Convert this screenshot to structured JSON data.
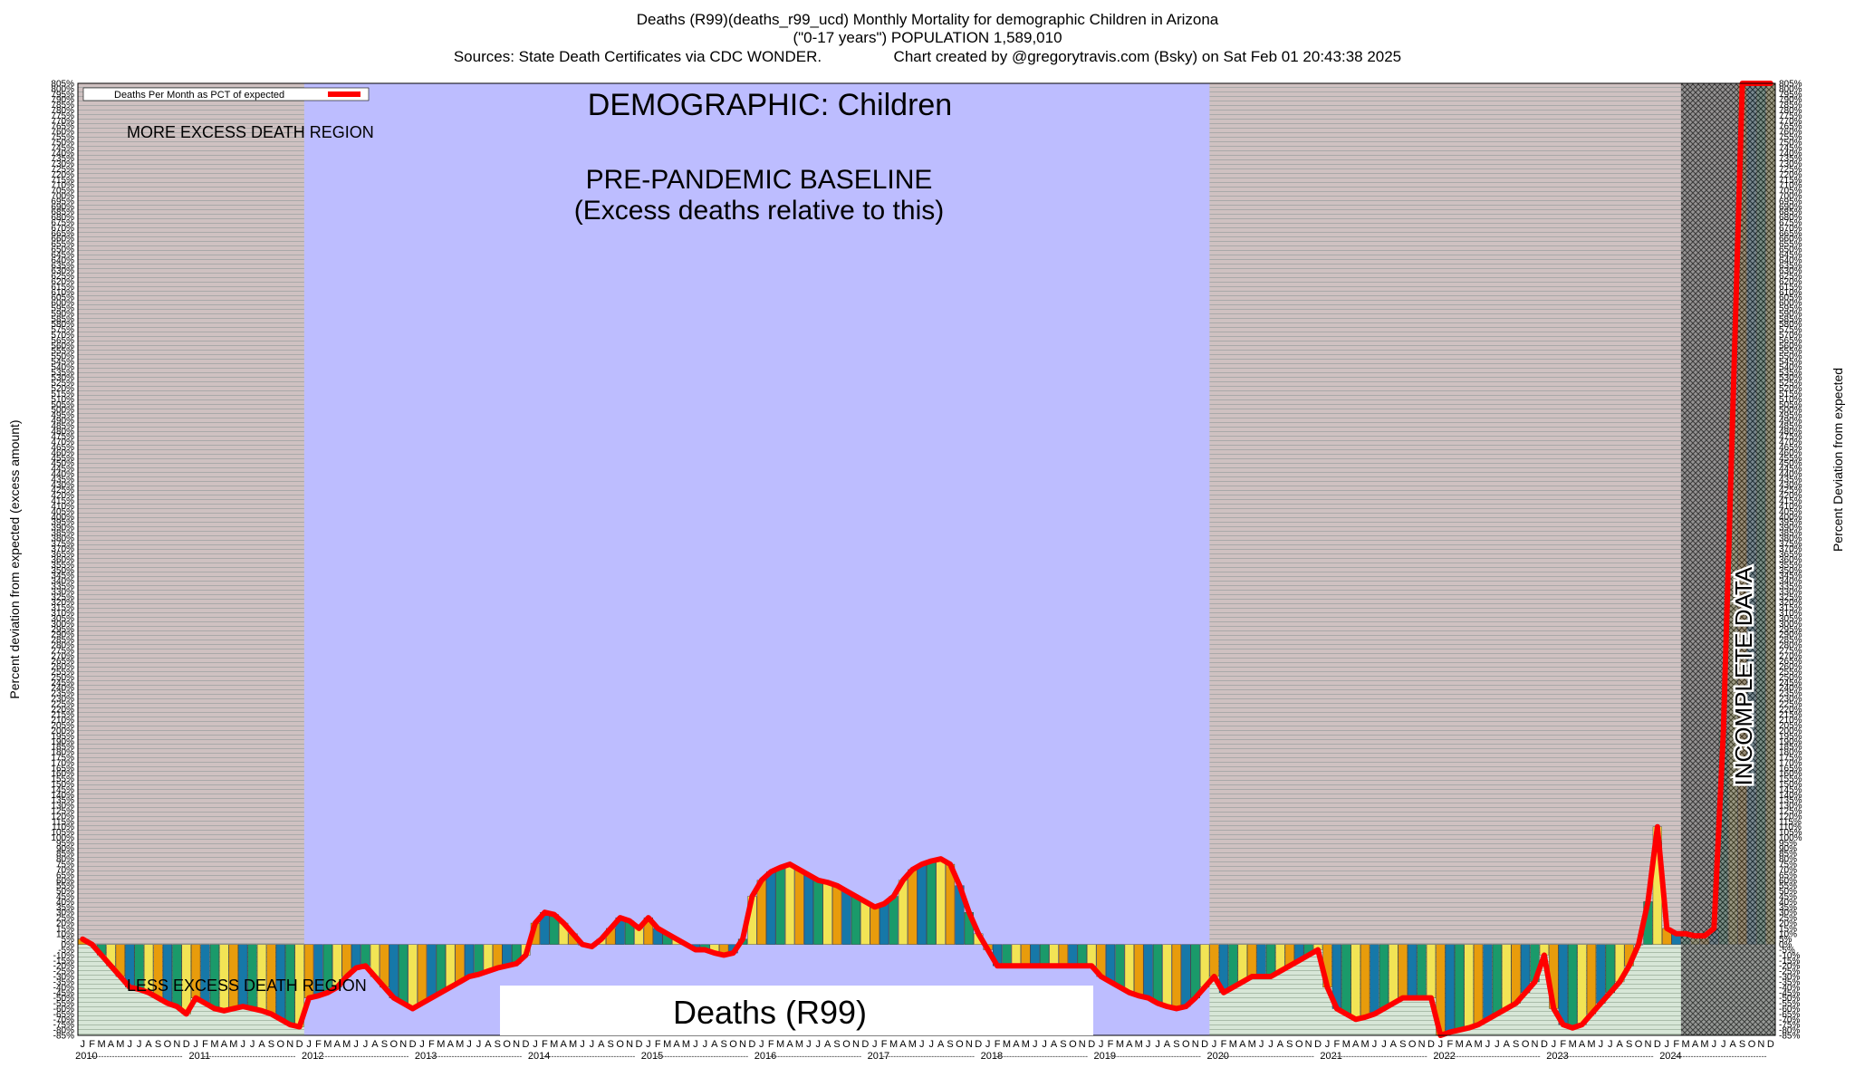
{
  "header": {
    "line1": "Deaths (R99)(deaths_r99_ucd) Monthly Mortality for demographic Children in Arizona",
    "line2": "(\"0-17 years\") POPULATION 1,589,010",
    "line3_left": "Sources: State Death Certificates via CDC WONDER.",
    "line3_right": "Chart created by @gregorytravis.com (Bsky) on Sat Feb 01 20:43:38 2025"
  },
  "chart_data": {
    "type": "bar",
    "title": "DEMOGRAPHIC: Children",
    "ylabel_left": "Percent deviation from expected (excess amount)",
    "ylabel_right": "Percent Deviation from expected",
    "ylim": [
      -85,
      805
    ],
    "ytick_step": 5,
    "legend": {
      "label": "Deaths Per Month as PCT of expected",
      "color": "#ff0000",
      "position": "top-left"
    },
    "annotations": {
      "more_excess": "MORE EXCESS DEATH REGION",
      "less_excess": "LESS EXCESS DEATH REGION",
      "baseline_1": "PRE-PANDEMIC BASELINE",
      "baseline_2": "(Excess deaths relative to this)",
      "incomplete": "INCOMPLETE DATA",
      "series_box": "Deaths (R99)"
    },
    "month_letters": [
      "J",
      "F",
      "M",
      "A",
      "M",
      "J",
      "J",
      "A",
      "S",
      "O",
      "N",
      "D"
    ],
    "years": [
      "2010",
      "2011",
      "2012",
      "2013",
      "2014",
      "2015",
      "2016",
      "2017",
      "2018",
      "2019",
      "2020",
      "2021",
      "2022",
      "2023",
      "2024"
    ],
    "baseline_years": [
      "2012",
      "2013",
      "2014",
      "2015",
      "2016",
      "2017",
      "2018",
      "2019"
    ],
    "incomplete_from": "2024-03",
    "bar_colors": [
      "#e89c0c",
      "#1678a8",
      "#1a9a6a",
      "#f2e455"
    ],
    "series": [
      {
        "name": "Deaths Per Month as PCT of expected",
        "color": "#ff0000",
        "values": [
          5,
          0,
          -10,
          -20,
          -30,
          -40,
          -42,
          -45,
          -50,
          -55,
          -58,
          -65,
          -50,
          -55,
          -60,
          -62,
          -60,
          -58,
          -60,
          -62,
          -65,
          -70,
          -75,
          -77,
          -50,
          -48,
          -45,
          -40,
          -30,
          -22,
          -20,
          -30,
          -40,
          -50,
          -55,
          -60,
          -55,
          -50,
          -45,
          -40,
          -35,
          -30,
          -28,
          -25,
          -22,
          -20,
          -18,
          -10,
          20,
          30,
          28,
          20,
          10,
          0,
          -2,
          5,
          15,
          25,
          22,
          15,
          25,
          15,
          10,
          5,
          0,
          -5,
          -5,
          -8,
          -10,
          -8,
          5,
          45,
          60,
          68,
          72,
          75,
          70,
          65,
          60,
          58,
          55,
          50,
          45,
          40,
          35,
          38,
          45,
          60,
          70,
          75,
          78,
          80,
          75,
          55,
          30,
          10,
          -5,
          -20,
          -20,
          -20,
          -20,
          -20,
          -20,
          -20,
          -20,
          -20,
          -20,
          -20,
          -30,
          -35,
          -40,
          -45,
          -48,
          -50,
          -55,
          -58,
          -60,
          -58,
          -50,
          -40,
          -30,
          -45,
          -40,
          -35,
          -30,
          -30,
          -30,
          -25,
          -20,
          -15,
          -10,
          -5,
          -40,
          -60,
          -65,
          -70,
          -68,
          -65,
          -60,
          -55,
          -50,
          -50,
          -50,
          -50,
          -85,
          -82,
          -80,
          -78,
          -75,
          -70,
          -65,
          -60,
          -55,
          -45,
          -35,
          -10,
          -60,
          -75,
          -78,
          -75,
          -65,
          -55,
          -45,
          -35,
          -20,
          0,
          40,
          110,
          15,
          10,
          10,
          8,
          8,
          15,
          200,
          500,
          805,
          805,
          805,
          805
        ]
      }
    ]
  }
}
